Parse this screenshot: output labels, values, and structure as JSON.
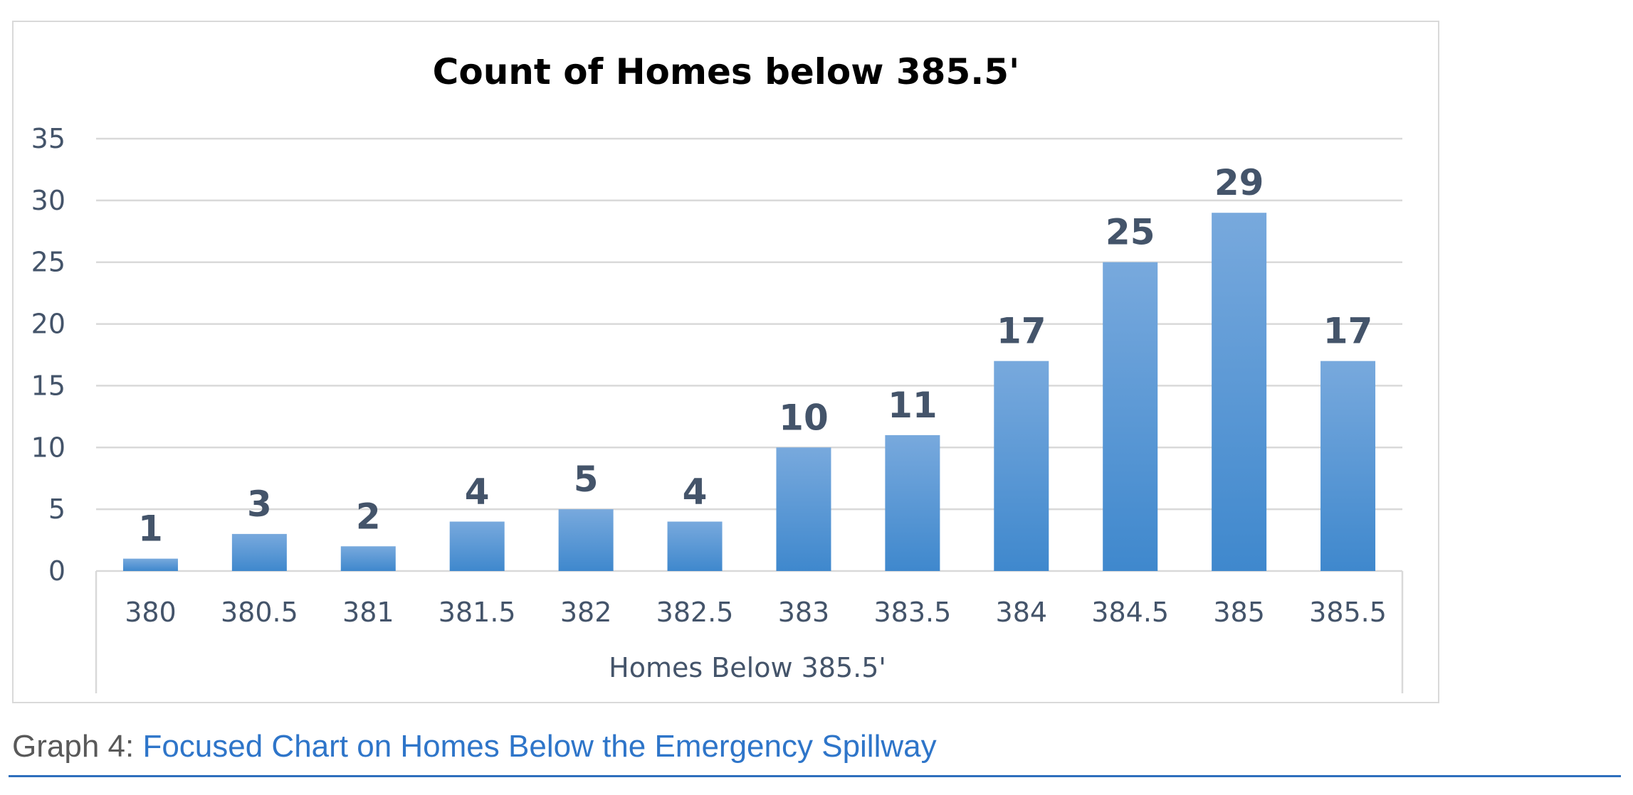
{
  "chart_data": {
    "type": "bar",
    "title": "Count of Homes below 385.5'",
    "xlabel": "Homes Below 385.5'",
    "ylabel": "",
    "categories": [
      "380",
      "380.5",
      "381",
      "381.5",
      "382",
      "382.5",
      "383",
      "383.5",
      "384",
      "384.5",
      "385",
      "385.5"
    ],
    "values": [
      1,
      3,
      2,
      4,
      5,
      4,
      10,
      11,
      17,
      25,
      29,
      17
    ],
    "ylim": [
      0,
      35
    ],
    "yticks": [
      "0",
      "5",
      "10",
      "15",
      "20",
      "25",
      "30",
      "35"
    ],
    "grid": true,
    "data_labels": true,
    "bar_color_top": "#78a9dd",
    "bar_color_bottom": "#3f88cd",
    "label_color": "#44546a"
  },
  "caption": {
    "prefix": "Graph 4: ",
    "title": "Focused Chart on Homes Below the Emergency Spillway"
  }
}
